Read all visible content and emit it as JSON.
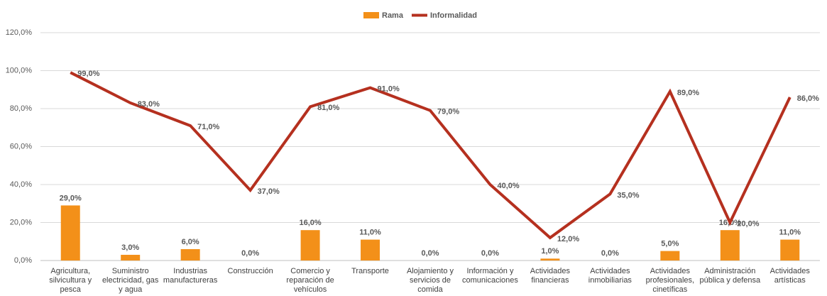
{
  "chart_data": {
    "type": "bar",
    "categories": [
      "Agricultura, silvicultura y pesca",
      "Suministro electricidad, gas y agua",
      "Industrias manufactureras",
      "Construcción",
      "Comercio y reparación de vehículos",
      "Transporte",
      "Alojamiento y servicios de comida",
      "Información y comunicaciones",
      "Actividades financieras",
      "Actividades inmobiliarias",
      "Actividades profesionales, cinetíficas",
      "Administración pública y defensa",
      "Actividades artísticas"
    ],
    "series": [
      {
        "name": "Rama",
        "type": "bar",
        "color": "#f39019",
        "values": [
          29,
          3,
          6,
          0,
          16,
          11,
          0,
          0,
          1,
          0,
          5,
          16,
          11
        ],
        "value_labels": [
          "29,0%",
          "3,0%",
          "6,0%",
          "0,0%",
          "16,0%",
          "11,0%",
          "0,0%",
          "0,0%",
          "1,0%",
          "0,0%",
          "5,0%",
          "16,0%",
          "11,0%"
        ]
      },
      {
        "name": "Informalidad",
        "type": "line",
        "color": "#b5301f",
        "values": [
          99,
          83,
          71,
          37,
          81,
          91,
          79,
          40,
          12,
          35,
          89,
          20,
          86
        ],
        "value_labels": [
          "99,0%",
          "83,0%",
          "71,0%",
          "37,0%",
          "81,0%",
          "91,0%",
          "79,0%",
          "40,0%",
          "12,0%",
          "35,0%",
          "89,0%",
          "20,0%",
          "86,0%"
        ]
      }
    ],
    "ylim": [
      0,
      120
    ],
    "yticks": [
      {
        "value": 0,
        "label": "0,0%"
      },
      {
        "value": 20,
        "label": "20,0%"
      },
      {
        "value": 40,
        "label": "40,0%"
      },
      {
        "value": 60,
        "label": "60,0%"
      },
      {
        "value": 80,
        "label": "80,0%"
      },
      {
        "value": 100,
        "label": "100,0%"
      },
      {
        "value": 120,
        "label": "120,0%"
      }
    ],
    "grid": true,
    "legend": "top"
  }
}
